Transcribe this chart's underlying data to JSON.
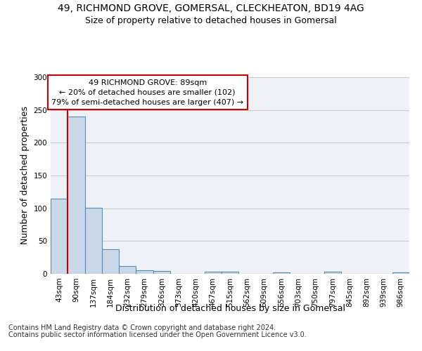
{
  "title1": "49, RICHMOND GROVE, GOMERSAL, CLECKHEATON, BD19 4AG",
  "title2": "Size of property relative to detached houses in Gomersal",
  "xlabel": "Distribution of detached houses by size in Gomersal",
  "ylabel": "Number of detached properties",
  "bar_labels": [
    "43sqm",
    "90sqm",
    "137sqm",
    "184sqm",
    "232sqm",
    "279sqm",
    "326sqm",
    "373sqm",
    "420sqm",
    "467sqm",
    "515sqm",
    "562sqm",
    "609sqm",
    "656sqm",
    "703sqm",
    "750sqm",
    "797sqm",
    "845sqm",
    "892sqm",
    "939sqm",
    "986sqm"
  ],
  "bar_values": [
    115,
    240,
    101,
    38,
    12,
    5,
    4,
    0,
    0,
    3,
    3,
    0,
    0,
    2,
    0,
    0,
    3,
    0,
    0,
    0,
    2
  ],
  "bar_color": "#c8d8e8",
  "bar_edge_color": "#5a8ab0",
  "bar_edge_width": 0.8,
  "annotation_line1": "49 RICHMOND GROVE: 89sqm",
  "annotation_line2": "← 20% of detached houses are smaller (102)",
  "annotation_line3": "79% of semi-detached houses are larger (407) →",
  "annotation_box_color": "#ffffff",
  "annotation_box_edge_color": "#cc0000",
  "vline_color": "#cc0000",
  "vline_lw": 1.5,
  "ylim": [
    0,
    300
  ],
  "yticks": [
    0,
    50,
    100,
    150,
    200,
    250,
    300
  ],
  "grid_color": "#cccccc",
  "bg_color": "#eef2f7",
  "footnote1": "Contains HM Land Registry data © Crown copyright and database right 2024.",
  "footnote2": "Contains public sector information licensed under the Open Government Licence v3.0.",
  "title1_fontsize": 10,
  "title2_fontsize": 9,
  "annotation_fontsize": 8,
  "xlabel_fontsize": 9,
  "ylabel_fontsize": 9,
  "tick_fontsize": 7.5,
  "footnote_fontsize": 7
}
